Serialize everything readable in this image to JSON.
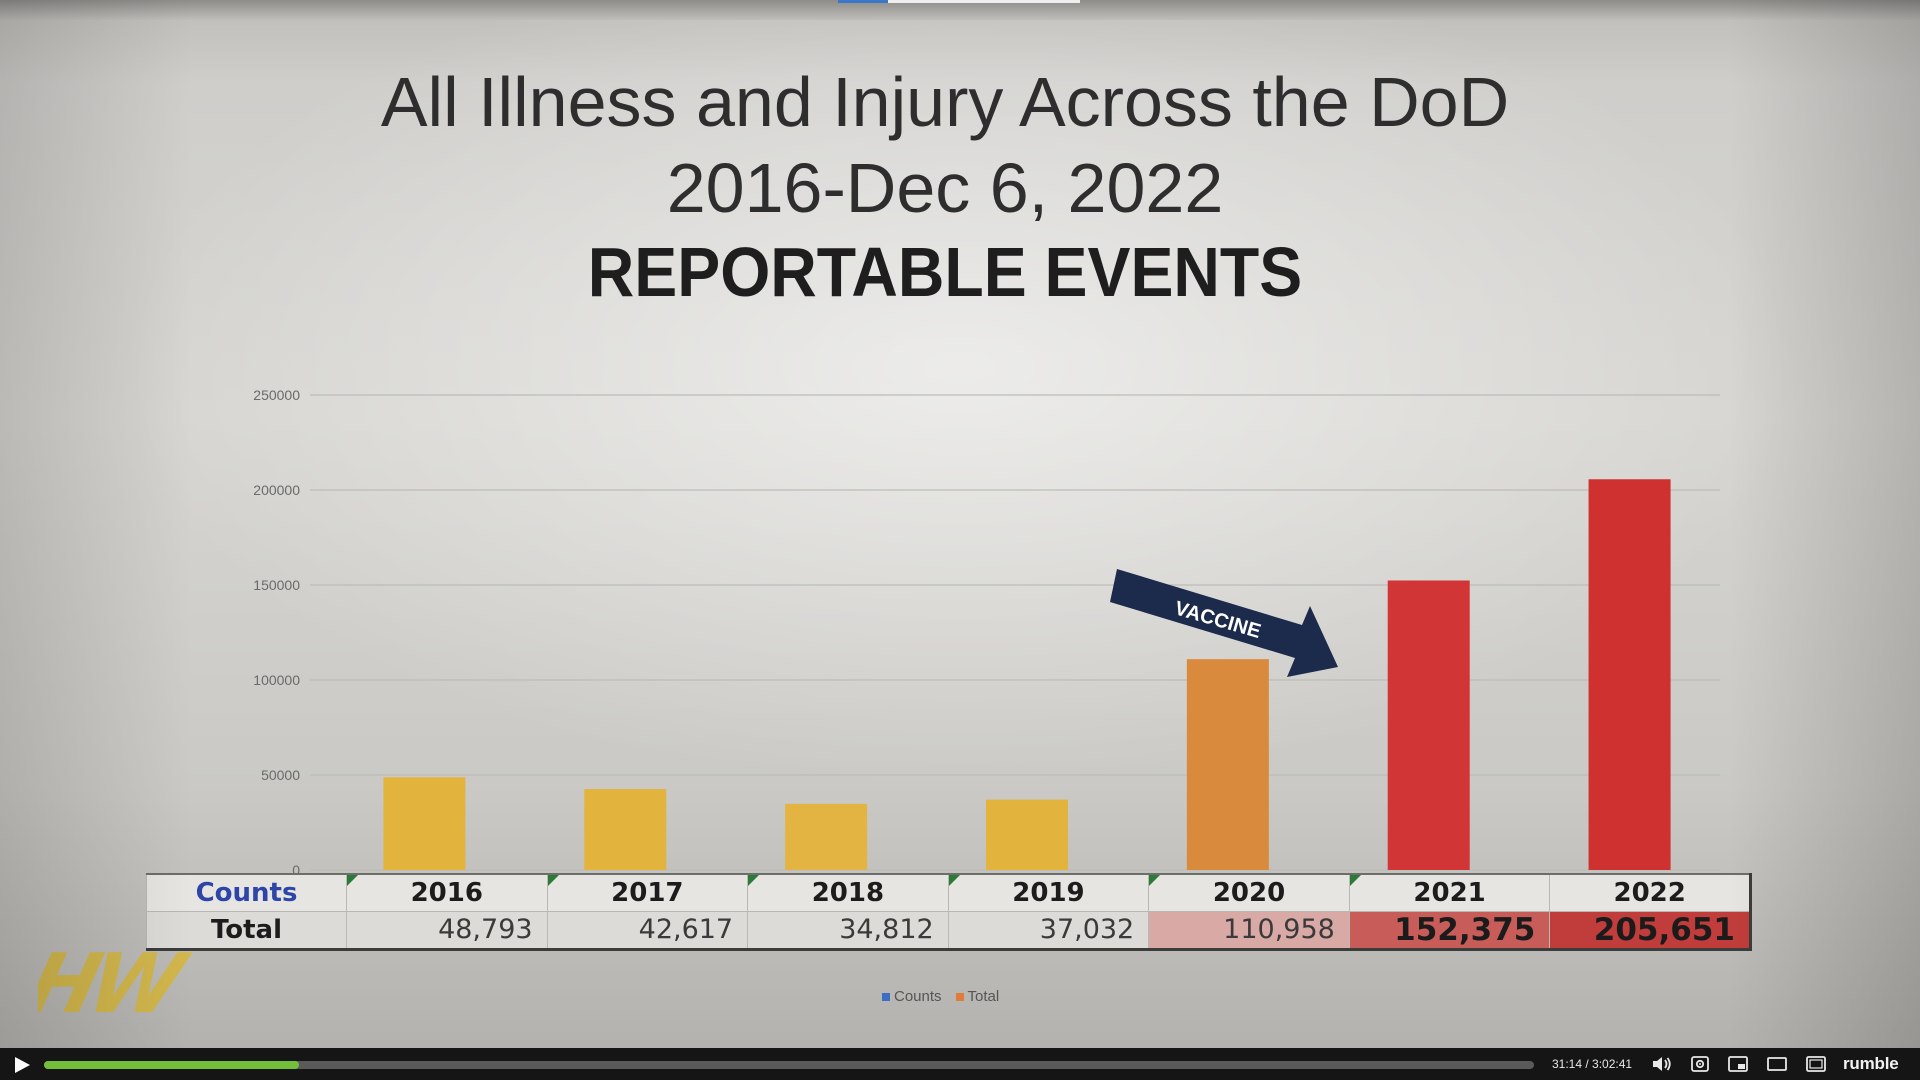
{
  "slide": {
    "title_line1": "All Illness and Injury Across the DoD",
    "title_line2": "2016-Dec 6, 2022",
    "title_line3": "REPORTABLE EVENTS",
    "annotation": "VACCINE",
    "watermark": "HW"
  },
  "chart_data": {
    "type": "bar",
    "categories": [
      "2016",
      "2017",
      "2018",
      "2019",
      "2020",
      "2021",
      "2022"
    ],
    "series": [
      {
        "name": "Counts",
        "values": [
          0,
          0,
          0,
          0,
          0,
          0,
          0
        ]
      },
      {
        "name": "Total",
        "values": [
          48793,
          42617,
          34812,
          37032,
          110958,
          152375,
          205651
        ]
      }
    ],
    "ylim": [
      0,
      250000
    ],
    "yticks": [
      "0",
      "50000",
      "100000",
      "150000",
      "200000",
      "250000"
    ],
    "grid": true,
    "legend": "bottom",
    "bar_colors": [
      "#e2b43e",
      "#e2b43e",
      "#e4b443",
      "#e2b43e",
      "#d98a3c",
      "#d13535",
      "#cf3030"
    ]
  },
  "table": {
    "header_label": "Counts",
    "total_label": "Total",
    "years": [
      "2016",
      "2017",
      "2018",
      "2019",
      "2020",
      "2021",
      "2022"
    ],
    "totals": [
      "48,793",
      "42,617",
      "34,812",
      "37,032",
      "110,958",
      "152,375",
      "205,651"
    ]
  },
  "legend": {
    "counts": "Counts",
    "total": "Total",
    "counts_color": "#3b6fc4",
    "total_color": "#e07b39"
  },
  "player": {
    "time": "31:14 / 3:02:41",
    "progress_fraction": 0.171,
    "brand": "rumble",
    "accent": "#74bf3a"
  }
}
